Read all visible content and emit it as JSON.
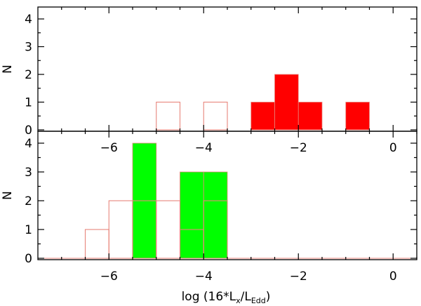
{
  "chart_data": [
    {
      "type": "bar",
      "panel": "top",
      "xlim": [
        -7.5,
        0.5
      ],
      "ylim": [
        0,
        4.3
      ],
      "ylabel": "N",
      "xticks": [
        -6,
        -4,
        -2,
        0
      ],
      "yticks": [
        0,
        1,
        2,
        3,
        4
      ],
      "bin_width": 0.5,
      "series": [
        {
          "style": "outline",
          "color": "#e8857c",
          "bins": [
            {
              "x0": -5.0,
              "count": 1
            },
            {
              "x0": -4.0,
              "count": 1
            }
          ]
        },
        {
          "style": "filled",
          "color": "#ff0000",
          "bins": [
            {
              "x0": -3.0,
              "count": 1
            },
            {
              "x0": -2.5,
              "count": 2
            },
            {
              "x0": -2.0,
              "count": 1
            },
            {
              "x0": -1.0,
              "count": 1
            }
          ]
        }
      ]
    },
    {
      "type": "bar",
      "panel": "bottom",
      "xlim": [
        -7.5,
        0.5
      ],
      "ylim": [
        0,
        4.3
      ],
      "ylabel": "N",
      "xlabel": "log (16*L_x/L_Edd)",
      "xticks": [
        -6,
        -4,
        -2,
        0
      ],
      "yticks": [
        0,
        1,
        2,
        3,
        4
      ],
      "bin_width": 0.5,
      "series": [
        {
          "style": "filled",
          "color": "#00ff00",
          "bins": [
            {
              "x0": -5.5,
              "count": 4
            },
            {
              "x0": -4.5,
              "count": 3
            },
            {
              "x0": -4.0,
              "count": 3
            }
          ]
        },
        {
          "style": "outline",
          "color": "#e8857c",
          "bins": [
            {
              "x0": -6.5,
              "count": 1
            },
            {
              "x0": -6.0,
              "count": 2
            },
            {
              "x0": -5.5,
              "count": 2
            },
            {
              "x0": -5.0,
              "count": 2
            },
            {
              "x0": -4.5,
              "count": 1
            },
            {
              "x0": -4.0,
              "count": 2
            }
          ]
        }
      ]
    }
  ],
  "xlabel_parts": {
    "prefix": "log (16*L",
    "sub1": "x",
    "mid": "/L",
    "sub2": "Edd",
    "suffix": ")"
  },
  "colors": {
    "outline": "#e8857c",
    "red_fill": "#ff0000",
    "green_fill": "#00ff00",
    "axis": "#000000"
  }
}
